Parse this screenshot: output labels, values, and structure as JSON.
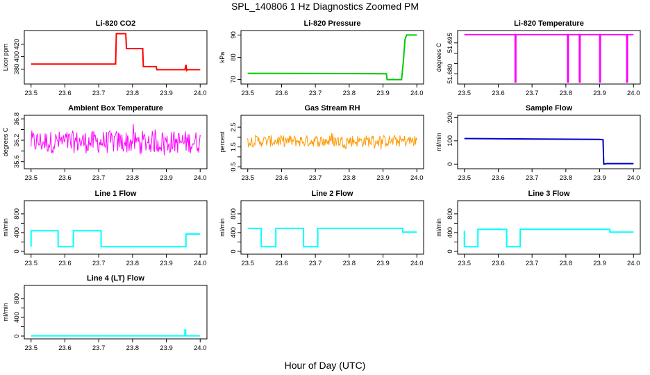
{
  "figure": {
    "title": "SPL_140806 1 Hz Diagnostics Zoomed PM",
    "xlabel": "Hour of Day (UTC)"
  },
  "chart_data": [
    {
      "id": "co2",
      "type": "line",
      "title": "Li-820 CO2",
      "ylabel": "Licor ppm",
      "color": "#ff0000",
      "xlim": [
        23.48,
        24.02
      ],
      "ylim": [
        356,
        442
      ],
      "xticks": [
        "23.5",
        "23.6",
        "23.7",
        "23.8",
        "23.9",
        "24.0"
      ],
      "yticks": [
        {
          "v": 380,
          "label": "380"
        },
        {
          "v": 400,
          "label": "400"
        },
        {
          "v": 420,
          "label": "420"
        }
      ],
      "series": [
        {
          "x": [
            23.5,
            23.75,
            23.752,
            23.78,
            23.782,
            23.83,
            23.832,
            23.87,
            23.872,
            23.955,
            23.958,
            23.96,
            23.962,
            24.0
          ],
          "y": [
            388,
            388,
            437,
            437,
            413,
            413,
            384,
            384,
            379,
            379,
            387,
            378,
            379,
            379
          ]
        }
      ]
    },
    {
      "id": "pressure",
      "type": "line",
      "title": "Li-820 Pressure",
      "ylabel": "kPa",
      "color": "#00cc00",
      "xlim": [
        23.48,
        24.02
      ],
      "ylim": [
        68,
        92
      ],
      "xticks": [
        "23.5",
        "23.6",
        "23.7",
        "23.8",
        "23.9",
        "24.0"
      ],
      "yticks": [
        {
          "v": 70,
          "label": "70"
        },
        {
          "v": 80,
          "label": "80"
        },
        {
          "v": 90,
          "label": "90"
        }
      ],
      "series": [
        {
          "x": [
            23.5,
            23.91,
            23.912,
            23.955,
            23.96,
            23.965,
            23.97,
            24.0
          ],
          "y": [
            72.8,
            72.6,
            70.0,
            70.0,
            78.0,
            88.0,
            90.0,
            90.0
          ]
        }
      ]
    },
    {
      "id": "temperature",
      "type": "line",
      "title": "Li-820 Temperature",
      "ylabel": "degrees C",
      "color": "#ff00ff",
      "xlim": [
        23.48,
        24.02
      ],
      "ylim": [
        51.675,
        51.701
      ],
      "xticks": [
        "23.5",
        "23.6",
        "23.7",
        "23.8",
        "23.9",
        "24.0"
      ],
      "yticks": [
        {
          "v": 51.68,
          "label": "51.680"
        },
        {
          "v": 51.685,
          "label": ""
        },
        {
          "v": 51.69,
          "label": ""
        },
        {
          "v": 51.695,
          "label": "51.695"
        }
      ],
      "series": [
        {
          "x": [
            23.5,
            23.65,
            23.65,
            23.652,
            23.652,
            23.805,
            23.805,
            23.807,
            23.807,
            23.84,
            23.84,
            23.842,
            23.842,
            23.9,
            23.9,
            23.902,
            23.902,
            23.98,
            23.98,
            23.982,
            23.982,
            24.0
          ],
          "y": [
            51.699,
            51.699,
            51.676,
            51.676,
            51.699,
            51.699,
            51.676,
            51.676,
            51.699,
            51.699,
            51.676,
            51.676,
            51.699,
            51.699,
            51.676,
            51.676,
            51.699,
            51.699,
            51.676,
            51.676,
            51.699,
            51.699
          ]
        }
      ]
    },
    {
      "id": "boxtemp",
      "type": "line",
      "title": "Ambient Box Temperature",
      "ylabel": "degrees C",
      "color": "#ff00ff",
      "xlim": [
        23.48,
        24.02
      ],
      "ylim": [
        35.4,
        36.9
      ],
      "xticks": [
        "23.5",
        "23.6",
        "23.7",
        "23.8",
        "23.9",
        "24.0"
      ],
      "yticks": [
        {
          "v": 35.6,
          "label": "35.6"
        },
        {
          "v": 35.9,
          "label": ""
        },
        {
          "v": 36.2,
          "label": "36.2"
        },
        {
          "v": 36.5,
          "label": ""
        },
        {
          "v": 36.8,
          "label": "36.8"
        }
      ],
      "noise": {
        "from": 23.5,
        "to": 24.0,
        "center": 36.15,
        "amp": 0.32,
        "n": 240
      },
      "series": [
        {
          "x": [
            23.5,
            24.0
          ],
          "y": [
            36.15,
            36.15
          ]
        }
      ]
    },
    {
      "id": "rh",
      "type": "line",
      "title": "Gas Stream RH",
      "ylabel": "percent",
      "color": "#ff9900",
      "xlim": [
        23.48,
        24.02
      ],
      "ylim": [
        0.4,
        3.1
      ],
      "xticks": [
        "23.5",
        "23.6",
        "23.7",
        "23.8",
        "23.9",
        "24.0"
      ],
      "yticks": [
        {
          "v": 0.5,
          "label": "0.5"
        },
        {
          "v": 1.0,
          "label": ""
        },
        {
          "v": 1.5,
          "label": "1.5"
        },
        {
          "v": 2.0,
          "label": ""
        },
        {
          "v": 2.5,
          "label": "2.5"
        }
      ],
      "noise": {
        "from": 23.5,
        "to": 24.0,
        "center": 1.8,
        "amp": 0.3,
        "n": 260
      },
      "series": [
        {
          "x": [
            23.5,
            24.0
          ],
          "y": [
            1.8,
            1.8
          ]
        }
      ]
    },
    {
      "id": "sampleflow",
      "type": "line",
      "title": "Sample Flow",
      "ylabel": "ml/min",
      "color": "#0000cc",
      "xlim": [
        23.48,
        24.02
      ],
      "ylim": [
        -20,
        210
      ],
      "xticks": [
        "23.5",
        "23.6",
        "23.7",
        "23.8",
        "23.9",
        "24.0"
      ],
      "yticks": [
        {
          "v": 0,
          "label": "0"
        },
        {
          "v": 100,
          "label": "100"
        },
        {
          "v": 200,
          "label": "200"
        }
      ],
      "series": [
        {
          "x": [
            23.5,
            23.9,
            23.91,
            23.912,
            23.92,
            24.0
          ],
          "y": [
            110,
            106,
            105,
            0,
            2,
            2
          ]
        }
      ]
    },
    {
      "id": "line1",
      "type": "line",
      "title": "Line 1 Flow",
      "ylabel": "ml/min",
      "color": "#00ffff",
      "xlim": [
        23.48,
        24.02
      ],
      "ylim": [
        -60,
        1080
      ],
      "xticks": [
        "23.5",
        "23.6",
        "23.7",
        "23.8",
        "23.9",
        "24.0"
      ],
      "yticks": [
        {
          "v": 0,
          "label": "0"
        },
        {
          "v": 200,
          "label": ""
        },
        {
          "v": 400,
          "label": "400"
        },
        {
          "v": 600,
          "label": ""
        },
        {
          "v": 800,
          "label": "800"
        }
      ],
      "series": [
        {
          "x": [
            23.5,
            23.5,
            23.502,
            23.58,
            23.58,
            23.625,
            23.625,
            23.707,
            23.707,
            23.958,
            23.958,
            24.0
          ],
          "y": [
            100,
            440,
            440,
            440,
            100,
            100,
            440,
            440,
            100,
            100,
            370,
            370
          ]
        }
      ]
    },
    {
      "id": "line2",
      "type": "line",
      "title": "Line 2 Flow",
      "ylabel": "ml/min",
      "color": "#00ffff",
      "xlim": [
        23.48,
        24.02
      ],
      "ylim": [
        -60,
        1080
      ],
      "xticks": [
        "23.5",
        "23.6",
        "23.7",
        "23.8",
        "23.9",
        "24.0"
      ],
      "yticks": [
        {
          "v": 0,
          "label": "0"
        },
        {
          "v": 200,
          "label": ""
        },
        {
          "v": 400,
          "label": "400"
        },
        {
          "v": 600,
          "label": ""
        },
        {
          "v": 800,
          "label": "800"
        }
      ],
      "series": [
        {
          "x": [
            23.5,
            23.54,
            23.54,
            23.583,
            23.583,
            23.665,
            23.665,
            23.707,
            23.707,
            23.958,
            23.958,
            24.0
          ],
          "y": [
            490,
            490,
            100,
            100,
            490,
            490,
            100,
            100,
            490,
            490,
            410,
            410
          ]
        }
      ]
    },
    {
      "id": "line3",
      "type": "line",
      "title": "Line 3 Flow",
      "ylabel": "ml/min",
      "color": "#00ffff",
      "xlim": [
        23.48,
        24.02
      ],
      "ylim": [
        -60,
        1080
      ],
      "xticks": [
        "23.5",
        "23.6",
        "23.7",
        "23.8",
        "23.9",
        "24.0"
      ],
      "yticks": [
        {
          "v": 0,
          "label": "0"
        },
        {
          "v": 200,
          "label": ""
        },
        {
          "v": 400,
          "label": "400"
        },
        {
          "v": 600,
          "label": ""
        },
        {
          "v": 800,
          "label": "800"
        }
      ],
      "series": [
        {
          "x": [
            23.5,
            23.5,
            23.502,
            23.54,
            23.54,
            23.625,
            23.625,
            23.665,
            23.665,
            23.93,
            23.93,
            24.0
          ],
          "y": [
            440,
            100,
            100,
            100,
            470,
            470,
            100,
            100,
            470,
            470,
            410,
            410
          ]
        }
      ]
    },
    {
      "id": "line4",
      "type": "line",
      "title": "Line 4 (LT) Flow",
      "ylabel": "ml/min",
      "color": "#00ffff",
      "xlim": [
        23.48,
        24.02
      ],
      "ylim": [
        -60,
        1080
      ],
      "xticks": [
        "23.5",
        "23.6",
        "23.7",
        "23.8",
        "23.9",
        "24.0"
      ],
      "yticks": [
        {
          "v": 0,
          "label": "0"
        },
        {
          "v": 200,
          "label": ""
        },
        {
          "v": 400,
          "label": "400"
        },
        {
          "v": 600,
          "label": ""
        },
        {
          "v": 800,
          "label": "800"
        }
      ],
      "series": [
        {
          "x": [
            23.5,
            23.955,
            23.955,
            23.957,
            23.957,
            24.0
          ],
          "y": [
            5,
            5,
            130,
            130,
            5,
            5
          ]
        }
      ]
    }
  ]
}
